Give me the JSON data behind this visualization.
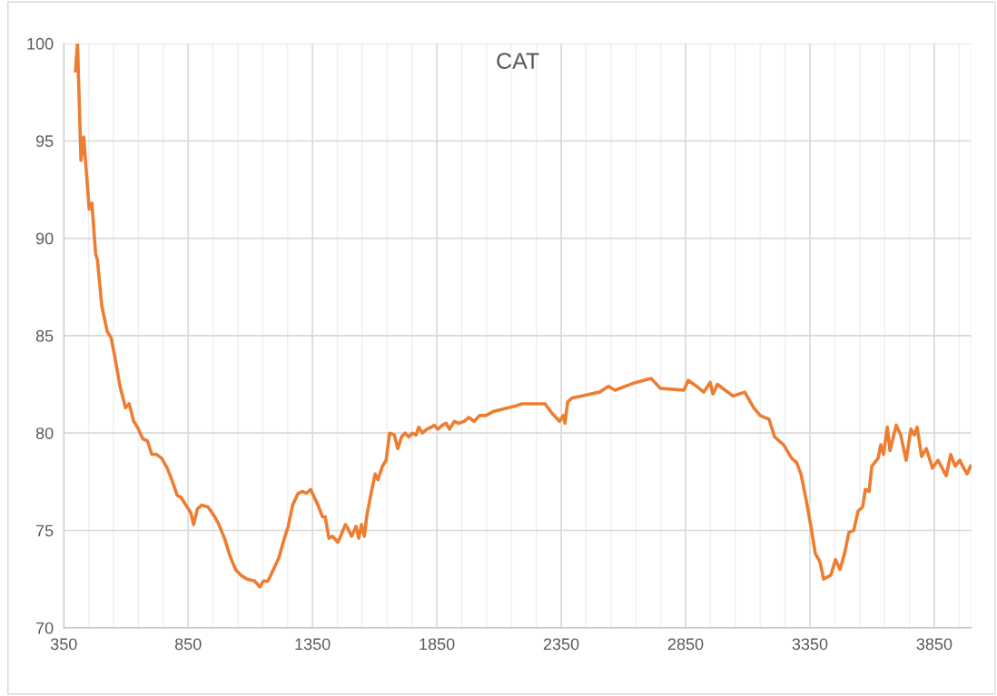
{
  "chart_data": {
    "type": "line",
    "title": "CAT",
    "x": [
      397,
      405,
      419,
      430,
      452,
      463,
      478,
      485,
      503,
      525,
      540,
      554,
      576,
      598,
      613,
      631,
      646,
      668,
      686,
      704,
      722,
      744,
      766,
      784,
      806,
      821,
      846,
      861,
      872,
      887,
      905,
      930,
      952,
      970,
      996,
      1018,
      1040,
      1062,
      1087,
      1117,
      1138,
      1153,
      1171,
      1193,
      1215,
      1237,
      1252,
      1270,
      1292,
      1310,
      1325,
      1343,
      1357,
      1372,
      1390,
      1401,
      1416,
      1430,
      1452,
      1463,
      1482,
      1492,
      1507,
      1525,
      1536,
      1547,
      1558,
      1569,
      1587,
      1602,
      1613,
      1631,
      1646,
      1660,
      1679,
      1693,
      1708,
      1722,
      1737,
      1752,
      1766,
      1777,
      1792,
      1810,
      1828,
      1839,
      1854,
      1872,
      1887,
      1901,
      1920,
      1938,
      1960,
      1978,
      2000,
      2022,
      2047,
      2076,
      2106,
      2139,
      2168,
      2193,
      2226,
      2285,
      2314,
      2343,
      2358,
      2365,
      2376,
      2394,
      2431,
      2467,
      2504,
      2540,
      2566,
      2650,
      2712,
      2748,
      2843,
      2861,
      2894,
      2923,
      2949,
      2960,
      2978,
      3040,
      3088,
      3124,
      3150,
      3186,
      3208,
      3244,
      3277,
      3296,
      3314,
      3336,
      3354,
      3372,
      3390,
      3405,
      3434,
      3453,
      3471,
      3489,
      3507,
      3526,
      3544,
      3562,
      3573,
      3588,
      3599,
      3624,
      3635,
      3646,
      3661,
      3672,
      3697,
      3715,
      3737,
      3756,
      3770,
      3781,
      3799,
      3818,
      3843,
      3865,
      3898,
      3916,
      3934,
      3953,
      3964,
      3982,
      3996
    ],
    "series": [
      {
        "color": "#ed7d31",
        "values": [
          98.6,
          100,
          94,
          95.2,
          91.5,
          91.8,
          89.2,
          88.9,
          86.5,
          85.2,
          84.9,
          84,
          82.4,
          81.3,
          81.5,
          80.6,
          80.3,
          79.7,
          79.6,
          78.9,
          78.9,
          78.7,
          78.2,
          77.6,
          76.8,
          76.7,
          76.2,
          75.9,
          75.3,
          76.1,
          76.3,
          76.2,
          75.8,
          75.4,
          74.6,
          73.7,
          73,
          72.7,
          72.5,
          72.4,
          72.1,
          72.4,
          72.4,
          73,
          73.6,
          74.6,
          75.2,
          76.3,
          76.9,
          77,
          76.9,
          77.1,
          76.7,
          76.3,
          75.7,
          75.7,
          74.6,
          74.7,
          74.4,
          74.7,
          75.3,
          75.1,
          74.7,
          75.2,
          74.6,
          75.3,
          74.7,
          75.8,
          77,
          77.9,
          77.6,
          78.3,
          78.6,
          80,
          79.9,
          79.2,
          79.8,
          80,
          79.8,
          80,
          79.9,
          80.3,
          80,
          80.2,
          80.3,
          80.4,
          80.2,
          80.4,
          80.5,
          80.2,
          80.6,
          80.5,
          80.6,
          80.8,
          80.6,
          80.9,
          80.9,
          81.1,
          81.2,
          81.3,
          81.4,
          81.5,
          81.5,
          81.5,
          81,
          80.6,
          80.9,
          80.5,
          81.6,
          81.8,
          81.9,
          82,
          82.1,
          82.4,
          82.2,
          82.6,
          82.8,
          82.3,
          82.2,
          82.7,
          82.4,
          82.1,
          82.6,
          82,
          82.5,
          81.9,
          82.1,
          81.3,
          80.9,
          80.7,
          79.8,
          79.4,
          78.7,
          78.5,
          77.9,
          76.5,
          75.2,
          73.8,
          73.4,
          72.5,
          72.7,
          73.5,
          73,
          73.8,
          74.9,
          75,
          76,
          76.2,
          77.1,
          77,
          78.3,
          78.7,
          79.4,
          78.9,
          80.3,
          79.1,
          80.4,
          79.9,
          78.6,
          80.2,
          79.9,
          80.3,
          78.8,
          79.2,
          78.2,
          78.6,
          77.8,
          78.9,
          78.3,
          78.6,
          78.3,
          77.9,
          78.3
        ]
      }
    ],
    "xlim": [
      350,
      4000
    ],
    "xticks": [
      350,
      {
        "value": 450,
        "label": null
      },
      {
        "value": 550,
        "label": null
      },
      {
        "value": 650,
        "label": null
      },
      {
        "value": 750,
        "label": null
      },
      850,
      {
        "value": 950,
        "label": null
      },
      {
        "value": 1050,
        "label": null
      },
      {
        "value": 1150,
        "label": null
      },
      {
        "value": 1250,
        "label": null
      },
      1350,
      {
        "value": 1450,
        "label": null
      },
      {
        "value": 1550,
        "label": null
      },
      {
        "value": 1650,
        "label": null
      },
      {
        "value": 1750,
        "label": null
      },
      1850,
      {
        "value": 1950,
        "label": null
      },
      {
        "value": 2050,
        "label": null
      },
      {
        "value": 2150,
        "label": null
      },
      {
        "value": 2250,
        "label": null
      },
      2350,
      {
        "value": 2450,
        "label": null
      },
      {
        "value": 2550,
        "label": null
      },
      {
        "value": 2650,
        "label": null
      },
      {
        "value": 2750,
        "label": null
      },
      2850,
      {
        "value": 2950,
        "label": null
      },
      {
        "value": 3050,
        "label": null
      },
      {
        "value": 3150,
        "label": null
      },
      {
        "value": 3250,
        "label": null
      },
      3350,
      {
        "value": 3450,
        "label": null
      },
      {
        "value": 3550,
        "label": null
      },
      {
        "value": 3650,
        "label": null
      },
      {
        "value": 3750,
        "label": null
      },
      3850,
      {
        "value": 3950,
        "label": null
      }
    ],
    "ylim": [
      70,
      100
    ],
    "yticks": [
      70,
      75,
      80,
      85,
      90,
      95,
      100
    ],
    "grid": true,
    "line_style": "solid"
  }
}
